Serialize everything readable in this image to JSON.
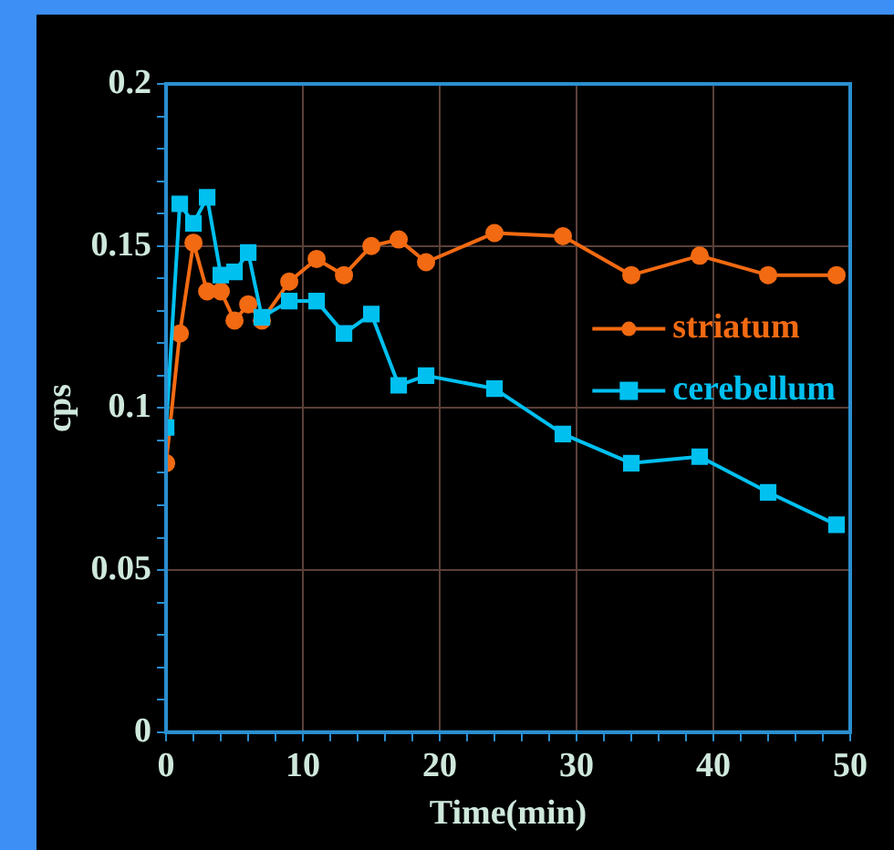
{
  "chart_data": {
    "type": "line",
    "xlabel": "Time(min)",
    "ylabel": "cps",
    "xlim": [
      0,
      50
    ],
    "xticks": [
      0,
      {
        "value": 2,
        "label": null
      },
      {
        "value": 4,
        "label": null
      },
      {
        "value": 6,
        "label": null
      },
      {
        "value": 8,
        "label": null
      },
      10,
      {
        "value": 12,
        "label": null
      },
      {
        "value": 14,
        "label": null
      },
      {
        "value": 16,
        "label": null
      },
      {
        "value": 18,
        "label": null
      },
      20,
      {
        "value": 22,
        "label": null
      },
      {
        "value": 24,
        "label": null
      },
      {
        "value": 26,
        "label": null
      },
      {
        "value": 28,
        "label": null
      },
      30,
      {
        "value": 32,
        "label": null
      },
      {
        "value": 34,
        "label": null
      },
      {
        "value": 36,
        "label": null
      },
      {
        "value": 38,
        "label": null
      },
      40,
      {
        "value": 42,
        "label": null
      },
      {
        "value": 44,
        "label": null
      },
      {
        "value": 46,
        "label": null
      },
      {
        "value": 48,
        "label": null
      },
      50
    ],
    "ylim": [
      0,
      0.2
    ],
    "yticks": [
      0,
      {
        "value": 0.01,
        "label": null
      },
      {
        "value": 0.02,
        "label": null
      },
      {
        "value": 0.03,
        "label": null
      },
      {
        "value": 0.04,
        "label": null
      },
      0.05,
      {
        "value": 0.06,
        "label": null
      },
      {
        "value": 0.07,
        "label": null
      },
      {
        "value": 0.08,
        "label": null
      },
      {
        "value": 0.09,
        "label": null
      },
      0.1,
      {
        "value": 0.11,
        "label": null
      },
      {
        "value": 0.12,
        "label": null
      },
      {
        "value": 0.13,
        "label": null
      },
      {
        "value": 0.14,
        "label": null
      },
      0.15,
      {
        "value": 0.16,
        "label": null
      },
      {
        "value": 0.17,
        "label": null
      },
      {
        "value": 0.18,
        "label": null
      },
      {
        "value": 0.19,
        "label": null
      },
      0.2
    ],
    "grid": true,
    "legend": "right",
    "line_style": "solid",
    "series": [
      {
        "name": "striatum",
        "color": "#f26a12",
        "marker": "circle",
        "x": [
          0,
          1,
          2,
          3,
          4,
          5,
          6,
          7,
          9,
          11,
          13,
          15,
          17,
          19,
          24,
          29,
          34,
          39,
          44,
          49
        ],
        "values": [
          0.083,
          0.123,
          0.151,
          0.136,
          0.136,
          0.127,
          0.132,
          0.127,
          0.139,
          0.146,
          0.141,
          0.15,
          0.152,
          0.145,
          0.154,
          0.153,
          0.141,
          0.147,
          0.141,
          0.141
        ]
      },
      {
        "name": "cerebellum",
        "color": "#00c0f0",
        "marker": "square",
        "x": [
          0,
          1,
          2,
          3,
          4,
          5,
          6,
          7,
          9,
          11,
          13,
          15,
          17,
          19,
          24,
          29,
          34,
          39,
          44,
          49
        ],
        "values": [
          0.094,
          0.163,
          0.157,
          0.165,
          0.141,
          0.142,
          0.148,
          0.128,
          0.133,
          0.133,
          0.123,
          0.129,
          0.107,
          0.11,
          0.106,
          0.092,
          0.083,
          0.085,
          0.074,
          0.064
        ]
      }
    ]
  }
}
